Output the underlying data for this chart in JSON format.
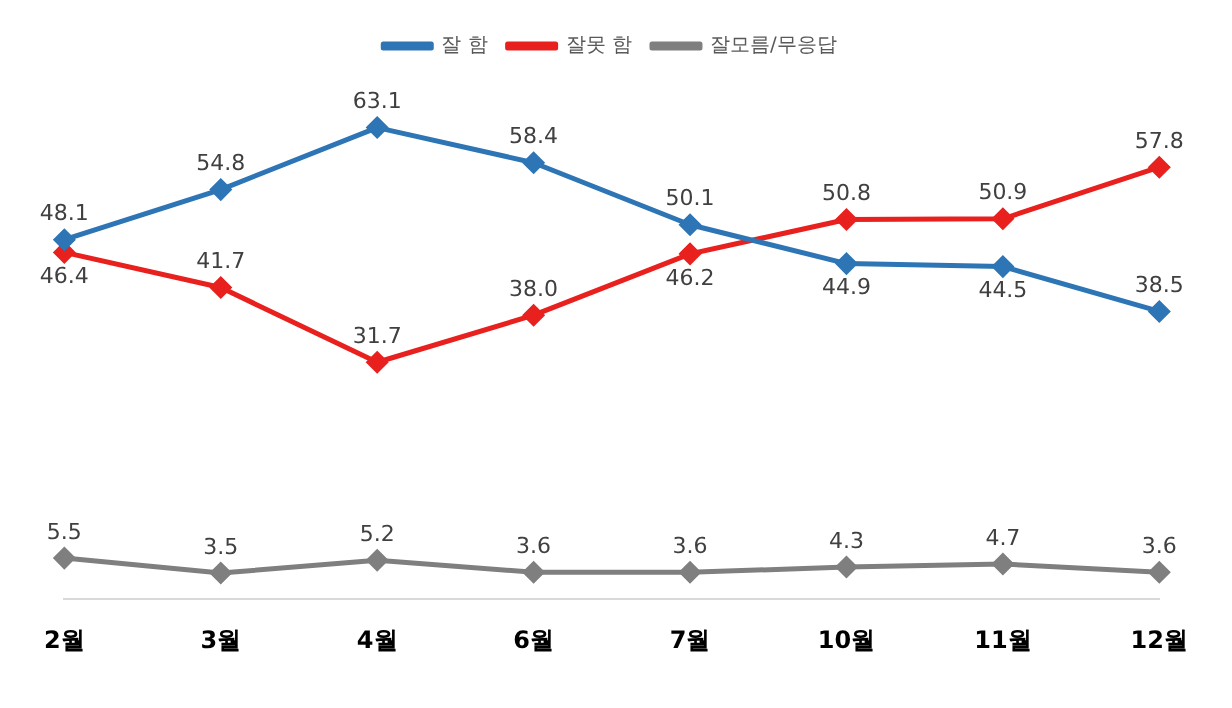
{
  "chart_data": {
    "type": "line",
    "categories": [
      "2월",
      "3월",
      "4월",
      "6월",
      "7월",
      "10월",
      "11월",
      "12월"
    ],
    "series": [
      {
        "name": "잘 함",
        "color": "#2e75b6",
        "values": [
          48.1,
          54.8,
          63.1,
          58.4,
          50.1,
          44.9,
          44.5,
          38.5
        ],
        "value_labels": [
          "48.1",
          "54.8",
          "63.1",
          "58.4",
          "50.1",
          "44.9",
          "44.5",
          "38.5"
        ]
      },
      {
        "name": "잘못 함",
        "color": "#e8201e",
        "values": [
          46.4,
          41.7,
          31.7,
          38.0,
          46.2,
          50.8,
          50.9,
          57.8
        ],
        "value_labels": [
          "46.4",
          "41.7",
          "31.7",
          "38.0",
          "46.2",
          "50.8",
          "50.9",
          "57.8"
        ]
      },
      {
        "name": "잘모름/무응답",
        "color": "#7f7f7f",
        "values": [
          5.5,
          3.5,
          5.2,
          3.6,
          3.6,
          4.3,
          4.7,
          3.6
        ],
        "value_labels": [
          "5.5",
          "3.5",
          "5.2",
          "3.6",
          "3.6",
          "4.3",
          "4.7",
          "3.6"
        ]
      }
    ],
    "legend": "top",
    "grid": false,
    "marker": "diamond",
    "line_style": "solid"
  }
}
